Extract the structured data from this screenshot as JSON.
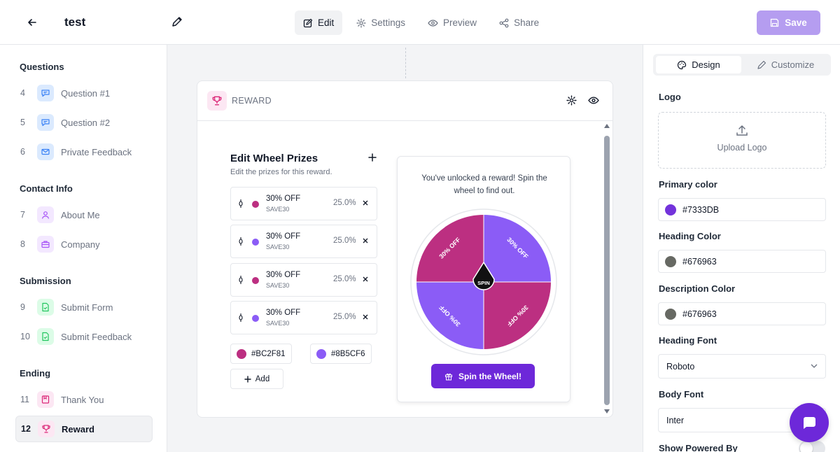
{
  "header": {
    "title": "test",
    "tabs": [
      {
        "label": "Edit",
        "icon": "pencil-square-icon",
        "active": true
      },
      {
        "label": "Settings",
        "icon": "gear-icon",
        "active": false
      },
      {
        "label": "Preview",
        "icon": "eye-icon",
        "active": false
      },
      {
        "label": "Share",
        "icon": "share-icon",
        "active": false
      }
    ],
    "save_label": "Save"
  },
  "sidebar": {
    "groups": [
      {
        "title": "Questions",
        "items": [
          {
            "num": "4",
            "label": "Question #1",
            "icon": "chat-bubble-icon"
          },
          {
            "num": "5",
            "label": "Question #2",
            "icon": "chat-bubble-icon"
          },
          {
            "num": "6",
            "label": "Private Feedback",
            "icon": "envelope-icon"
          }
        ]
      },
      {
        "title": "Contact Info",
        "items": [
          {
            "num": "7",
            "label": "About Me",
            "icon": "user-icon"
          },
          {
            "num": "8",
            "label": "Company",
            "icon": "briefcase-icon"
          }
        ]
      },
      {
        "title": "Submission",
        "items": [
          {
            "num": "9",
            "label": "Submit Form",
            "icon": "document-check-icon"
          },
          {
            "num": "10",
            "label": "Submit Feedback",
            "icon": "document-check-icon"
          }
        ]
      },
      {
        "title": "Ending",
        "items": [
          {
            "num": "11",
            "label": "Thank You",
            "icon": "bookmark-icon"
          },
          {
            "num": "12",
            "label": "Reward",
            "icon": "trophy-icon",
            "active": true
          }
        ]
      }
    ]
  },
  "card": {
    "title": "REWARD",
    "edit_title": "Edit Wheel Prizes",
    "edit_subtitle": "Edit the prizes for this reward.",
    "prizes": [
      {
        "label": "30% OFF",
        "code": "SAVE30",
        "percent": "25.0%",
        "color": "#BC2F81"
      },
      {
        "label": "30% OFF",
        "code": "SAVE30",
        "percent": "25.0%",
        "color": "#8B5CF6"
      },
      {
        "label": "30% OFF",
        "code": "SAVE30",
        "percent": "25.0%",
        "color": "#BC2F81"
      },
      {
        "label": "30% OFF",
        "code": "SAVE30",
        "percent": "25.0%",
        "color": "#8B5CF6"
      }
    ],
    "colors": [
      "#BC2F81",
      "#8B5CF6"
    ],
    "add_label": "Add",
    "preview": {
      "message": "You've unlocked a reward! Spin the wheel to find out.",
      "spin_center": "SPIN",
      "segment_label": "30% OFF",
      "button_label": "Spin the Wheel!"
    }
  },
  "design_panel": {
    "tabs": [
      {
        "label": "Design",
        "icon": "palette-icon",
        "active": true
      },
      {
        "label": "Customize",
        "icon": "pencil-icon",
        "active": false
      }
    ],
    "logo_label": "Logo",
    "upload_label": "Upload Logo",
    "primary_color": {
      "label": "Primary color",
      "value": "#7333DB"
    },
    "heading_color": {
      "label": "Heading Color",
      "value": "#676963"
    },
    "description_color": {
      "label": "Description Color",
      "value": "#676963"
    },
    "heading_font": {
      "label": "Heading Font",
      "value": "Roboto"
    },
    "body_font": {
      "label": "Body Font",
      "value": "Inter"
    },
    "powered_by": {
      "label": "Show Powered By",
      "enabled": false
    }
  },
  "colors": {
    "accent": "#7333DB",
    "save_button": "#B59DF0",
    "wheel_pink": "#BC2F81",
    "wheel_purple": "#8B5CF6"
  }
}
